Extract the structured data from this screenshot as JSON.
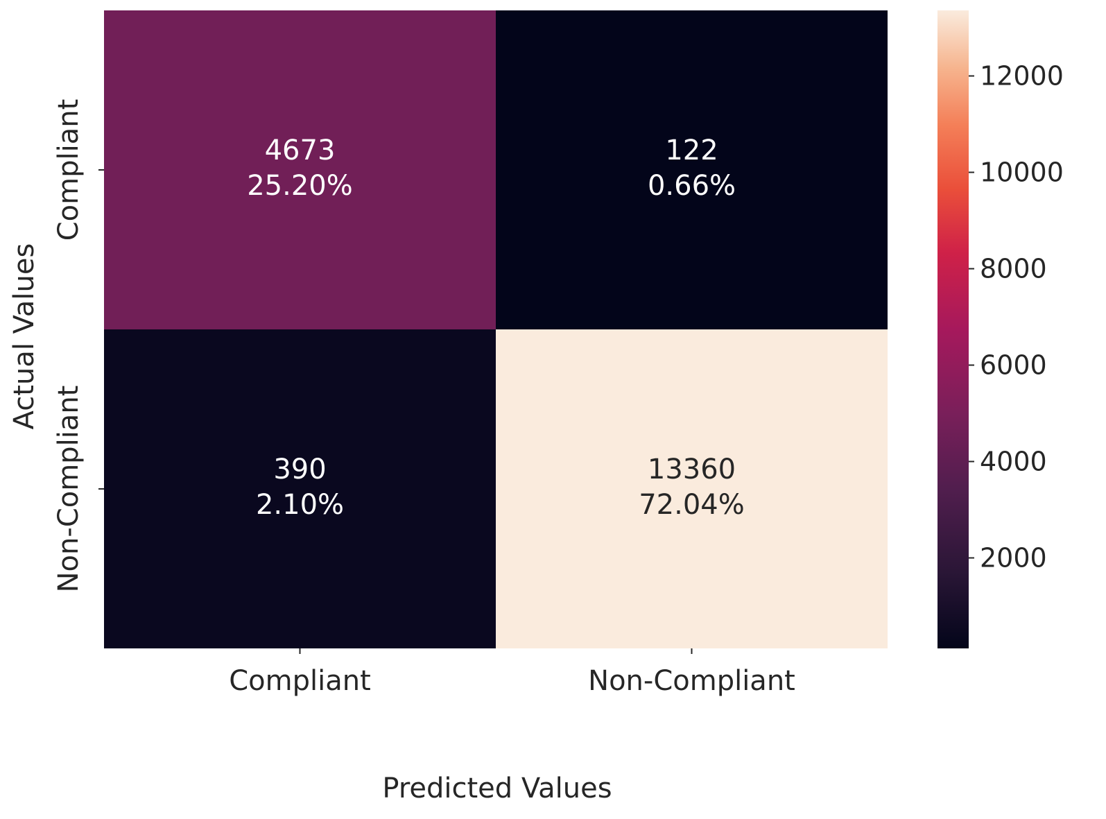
{
  "chart_data": {
    "type": "heatmap",
    "title": "",
    "xlabel": "Predicted Values",
    "ylabel": "Actual Values",
    "x_categories": [
      "Compliant",
      "Non-Compliant"
    ],
    "y_categories": [
      "Compliant",
      "Non-Compliant"
    ],
    "cells": [
      {
        "row": 0,
        "col": 0,
        "count": "4673",
        "percent": "25.20%",
        "value": 4673
      },
      {
        "row": 0,
        "col": 1,
        "count": "122",
        "percent": "0.66%",
        "value": 122
      },
      {
        "row": 1,
        "col": 0,
        "count": "390",
        "percent": "2.10%",
        "value": 390
      },
      {
        "row": 1,
        "col": 1,
        "count": "13360",
        "percent": "72.04%",
        "value": 13360
      }
    ],
    "colorbar": {
      "vmin": 122,
      "vmax": 13360,
      "ticks": [
        2000,
        4000,
        6000,
        8000,
        10000,
        12000
      ],
      "tick_labels": [
        "2000",
        "4000",
        "6000",
        "8000",
        "10000",
        "12000"
      ],
      "colormap": "rocket"
    }
  }
}
